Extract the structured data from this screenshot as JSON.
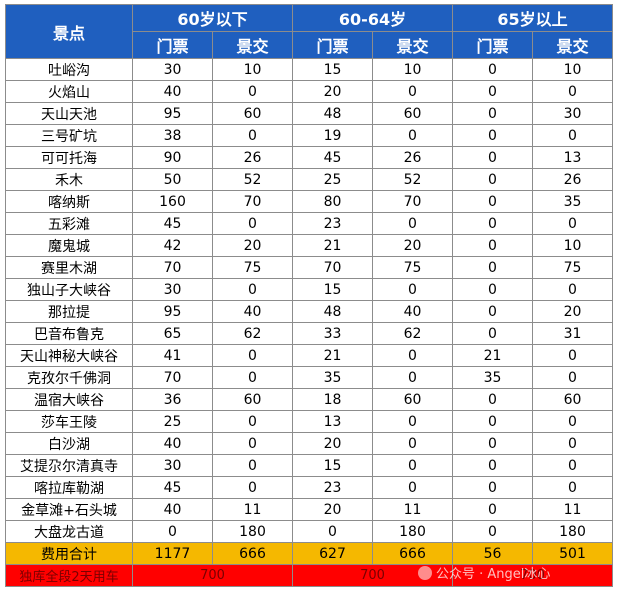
{
  "header": {
    "spot_label": "景点",
    "groups": [
      "60岁以下",
      "60-64岁",
      "65岁以上"
    ],
    "ticket_label": "门票",
    "shuttle_label": "景交"
  },
  "rows": [
    {
      "name": "吐峪沟",
      "v": [
        "30",
        "10",
        "15",
        "10",
        "0",
        "10"
      ]
    },
    {
      "name": "火焰山",
      "v": [
        "40",
        "0",
        "20",
        "0",
        "0",
        "0"
      ]
    },
    {
      "name": "天山天池",
      "v": [
        "95",
        "60",
        "48",
        "60",
        "0",
        "30"
      ]
    },
    {
      "name": "三号矿坑",
      "v": [
        "38",
        "0",
        "19",
        "0",
        "0",
        "0"
      ]
    },
    {
      "name": "可可托海",
      "v": [
        "90",
        "26",
        "45",
        "26",
        "0",
        "13"
      ]
    },
    {
      "name": "禾木",
      "v": [
        "50",
        "52",
        "25",
        "52",
        "0",
        "26"
      ]
    },
    {
      "name": "喀纳斯",
      "v": [
        "160",
        "70",
        "80",
        "70",
        "0",
        "35"
      ]
    },
    {
      "name": "五彩滩",
      "v": [
        "45",
        "0",
        "23",
        "0",
        "0",
        "0"
      ]
    },
    {
      "name": "魔鬼城",
      "v": [
        "42",
        "20",
        "21",
        "20",
        "0",
        "10"
      ]
    },
    {
      "name": "赛里木湖",
      "v": [
        "70",
        "75",
        "70",
        "75",
        "0",
        "75"
      ]
    },
    {
      "name": "独山子大峡谷",
      "v": [
        "30",
        "0",
        "15",
        "0",
        "0",
        "0"
      ]
    },
    {
      "name": "那拉提",
      "v": [
        "95",
        "40",
        "48",
        "40",
        "0",
        "20"
      ]
    },
    {
      "name": "巴音布鲁克",
      "v": [
        "65",
        "62",
        "33",
        "62",
        "0",
        "31"
      ]
    },
    {
      "name": "天山神秘大峡谷",
      "v": [
        "41",
        "0",
        "21",
        "0",
        "21",
        "0"
      ]
    },
    {
      "name": "克孜尔千佛洞",
      "v": [
        "70",
        "0",
        "35",
        "0",
        "35",
        "0"
      ]
    },
    {
      "name": "温宿大峡谷",
      "v": [
        "36",
        "60",
        "18",
        "60",
        "0",
        "60"
      ]
    },
    {
      "name": "莎车王陵",
      "v": [
        "25",
        "0",
        "13",
        "0",
        "0",
        "0"
      ]
    },
    {
      "name": "白沙湖",
      "v": [
        "40",
        "0",
        "20",
        "0",
        "0",
        "0"
      ]
    },
    {
      "name": "艾提尕尔清真寺",
      "v": [
        "30",
        "0",
        "15",
        "0",
        "0",
        "0"
      ]
    },
    {
      "name": "喀拉库勒湖",
      "v": [
        "45",
        "0",
        "23",
        "0",
        "0",
        "0"
      ]
    },
    {
      "name": "金草滩+石头城",
      "v": [
        "40",
        "11",
        "20",
        "11",
        "0",
        "11"
      ]
    },
    {
      "name": "大盘龙古道",
      "v": [
        "0",
        "180",
        "0",
        "180",
        "0",
        "180"
      ]
    }
  ],
  "total": {
    "label": "费用合计",
    "v": [
      "1177",
      "666",
      "627",
      "666",
      "56",
      "501"
    ]
  },
  "pass": {
    "label": "独库全段2天用车",
    "v": [
      "700",
      "700",
      "700"
    ]
  },
  "watermark": "公众号 · Angel冰心",
  "colors": {
    "header_bg": "#1f5fbf",
    "total_bg": "#f5b800",
    "pass_bg": "#ff0000"
  }
}
